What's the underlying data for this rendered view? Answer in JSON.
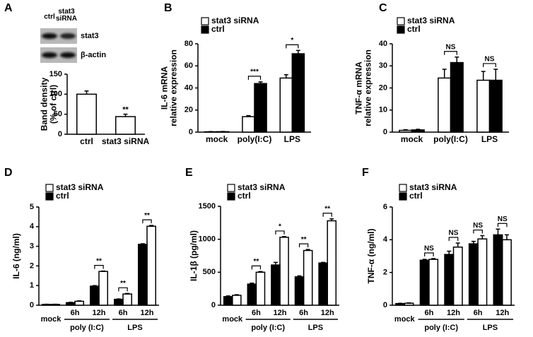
{
  "chart_data": [
    {
      "type": "bar",
      "panel": "A",
      "blot": {
        "lanes": [
          "ctrl",
          "stat3 siRNA"
        ],
        "bands": [
          "stat3",
          "β-actin"
        ]
      },
      "categories": [
        "ctrl",
        "stat3 siRNA"
      ],
      "values": [
        100,
        44
      ],
      "errors": [
        8,
        6
      ],
      "color": "#ffffff",
      "ylim": [
        0,
        150
      ],
      "yticks": [
        0,
        50,
        100,
        150
      ],
      "ylabel": [
        "Band density",
        "(% of ctrl)"
      ],
      "significance": [
        null,
        "**"
      ]
    },
    {
      "type": "bar",
      "panel": "B",
      "categories": [
        "mock",
        "poly(I:C)",
        "LPS"
      ],
      "series": [
        {
          "name": "stat3 siRNA",
          "color": "#ffffff",
          "values": [
            0.3,
            14,
            49
          ],
          "errors": [
            0.2,
            1,
            3
          ]
        },
        {
          "name": "ctrl",
          "color": "#000000",
          "values": [
            0.4,
            44,
            71
          ],
          "errors": [
            0.2,
            1.5,
            3
          ]
        }
      ],
      "ylim": [
        0,
        80
      ],
      "yticks": [
        0,
        20,
        40,
        60,
        80
      ],
      "ylabel": [
        "IL-6 mRNA",
        "relative expression"
      ],
      "significance": [
        null,
        "***",
        "*"
      ]
    },
    {
      "type": "bar",
      "panel": "C",
      "categories": [
        "mock",
        "poly(I:C)",
        "LPS"
      ],
      "series": [
        {
          "name": "stat3 siRNA",
          "color": "#ffffff",
          "values": [
            0.8,
            24.5,
            23.5
          ],
          "errors": [
            0.3,
            4,
            4
          ]
        },
        {
          "name": "ctrl",
          "color": "#000000",
          "values": [
            1,
            31.5,
            23.5
          ],
          "errors": [
            0.3,
            2.5,
            5
          ]
        }
      ],
      "ylim": [
        0,
        40
      ],
      "yticks": [
        0,
        10,
        20,
        30,
        40
      ],
      "ylabel": [
        "TNF-α mRNA",
        "relative expression"
      ],
      "significance": [
        null,
        "NS",
        "NS"
      ]
    },
    {
      "type": "bar",
      "panel": "D",
      "categories": [
        "mock",
        "6h",
        "12h",
        "6h",
        "12h"
      ],
      "groups": [
        "poly (I:C)",
        "LPS"
      ],
      "series": [
        {
          "name": "stat3 siRNA",
          "color": "#ffffff",
          "values": [
            0.04,
            0.2,
            1.72,
            0.57,
            4.02
          ],
          "errors": [
            0.01,
            0.02,
            0.02,
            0.03,
            0.04
          ]
        },
        {
          "name": "ctrl",
          "color": "#000000",
          "values": [
            0.04,
            0.13,
            0.97,
            0.3,
            3.1
          ],
          "errors": [
            0.01,
            0.02,
            0.03,
            0.02,
            0.03
          ]
        }
      ],
      "ylim": [
        0,
        5
      ],
      "yticks": [
        0,
        1,
        2,
        3,
        4,
        5
      ],
      "ylabel": [
        "IL-6 (ng/ml)"
      ],
      "significance": [
        null,
        null,
        "**",
        "**",
        "**"
      ]
    },
    {
      "type": "bar",
      "panel": "E",
      "categories": [
        "mock",
        "6h",
        "12h",
        "6h",
        "12h"
      ],
      "groups": [
        "poly (I:C)",
        "LPS"
      ],
      "series": [
        {
          "name": "stat3 siRNA",
          "color": "#ffffff",
          "values": [
            150,
            500,
            1030,
            830,
            1280
          ],
          "errors": [
            10,
            10,
            10,
            15,
            30
          ]
        },
        {
          "name": "ctrl",
          "color": "#000000",
          "values": [
            130,
            320,
            610,
            430,
            640
          ],
          "errors": [
            10,
            15,
            40,
            15,
            10
          ]
        }
      ],
      "ylim": [
        0,
        1500
      ],
      "yticks": [
        0,
        500,
        1000,
        1500
      ],
      "ylabel": [
        "IL-1β (pg/ml)"
      ],
      "significance": [
        null,
        "**",
        "*",
        "**",
        "**"
      ]
    },
    {
      "type": "bar",
      "panel": "F",
      "categories": [
        "mock",
        "6h",
        "12h",
        "6h",
        "12h"
      ],
      "groups": [
        "poly (I:C)",
        "LPS"
      ],
      "series": [
        {
          "name": "stat3 siRNA",
          "color": "#ffffff",
          "values": [
            0.12,
            2.8,
            3.55,
            4.05,
            4.0
          ],
          "errors": [
            0.02,
            0.05,
            0.25,
            0.2,
            0.3
          ]
        },
        {
          "name": "ctrl",
          "color": "#000000",
          "values": [
            0.1,
            2.75,
            3.1,
            3.75,
            4.3
          ],
          "errors": [
            0.02,
            0.05,
            0.2,
            0.15,
            0.35
          ]
        }
      ],
      "ylim": [
        0,
        6
      ],
      "yticks": [
        0,
        2,
        4,
        6
      ],
      "ylabel": [
        "TNF-α (ng/ml)"
      ],
      "significance": [
        null,
        "NS",
        "NS",
        "NS",
        "NS"
      ]
    }
  ]
}
